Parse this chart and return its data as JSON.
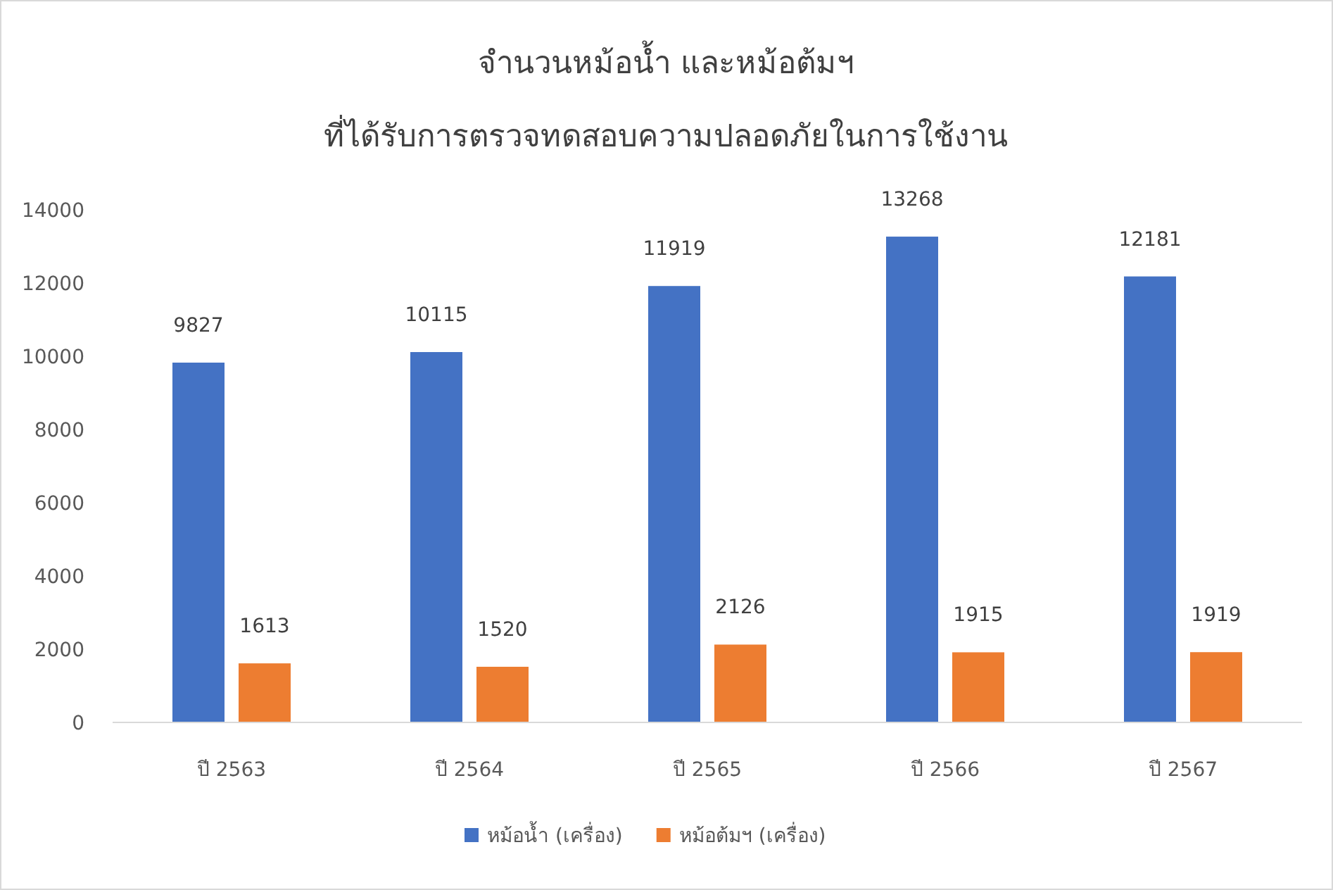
{
  "chart_data": {
    "type": "bar",
    "title": "จำนวนหม้อน้ำ และหม้อต้มฯ",
    "subtitle": "ที่ได้รับการตรวจทดสอบความปลอดภัยในการใช้งาน",
    "categories": [
      "ปี 2563",
      "ปี 2564",
      "ปี 2565",
      "ปี 2566",
      "ปี 2567"
    ],
    "series": [
      {
        "name": "หม้อน้ำ (เครื่อง)",
        "color": "#4472c4",
        "values": [
          9827,
          10115,
          11919,
          13268,
          12181
        ]
      },
      {
        "name": "หม้อต้มฯ (เครื่อง)",
        "color": "#ed7d31",
        "values": [
          1613,
          1520,
          2126,
          1915,
          1919
        ]
      }
    ],
    "ylim": [
      0,
      14000
    ],
    "yticks": [
      0,
      2000,
      4000,
      6000,
      8000,
      10000,
      12000,
      14000
    ],
    "data_labels": true,
    "grid": false,
    "legend": "bottom"
  }
}
